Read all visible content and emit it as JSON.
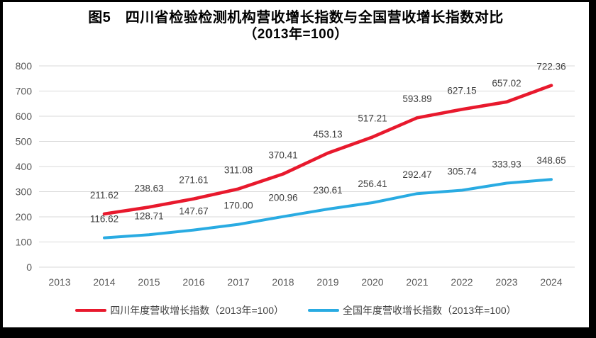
{
  "window": {
    "frame_color": "#000000",
    "canvas_color": "#ffffff"
  },
  "title": {
    "line1": "图5　四川省检验检测机构营收增长指数与全国营收增长指数对比",
    "line2": "（2013年=100）"
  },
  "chart_data": {
    "type": "line",
    "title": "图5 四川省检验检测机构营收增长指数与全国营收增长指数对比（2013年=100）",
    "x_years": [
      2013,
      2014,
      2015,
      2016,
      2017,
      2018,
      2019,
      2020,
      2021,
      2022,
      2023,
      2024
    ],
    "ylim": [
      0,
      800
    ],
    "ytick_step": 100,
    "grid": true,
    "data_labels": true,
    "legend_position": "bottom",
    "series": [
      {
        "name": "四川年度营收增长指数（2013年=100）",
        "color": "#e8192d",
        "first_year": 2014,
        "values": [
          211.62,
          238.63,
          271.61,
          311.08,
          370.41,
          453.13,
          517.21,
          593.89,
          627.15,
          657.02,
          722.36
        ]
      },
      {
        "name": "全国年度营收增长指数（2013年=100）",
        "color": "#29abe2",
        "first_year": 2014,
        "values": [
          116.62,
          128.71,
          147.67,
          170.0,
          200.96,
          230.61,
          256.41,
          292.47,
          305.74,
          333.93,
          348.65
        ]
      }
    ]
  },
  "colors": {
    "grid": "#d9d9d9",
    "tick_label": "#595959",
    "data_label": "#404040",
    "title": "#000000"
  }
}
